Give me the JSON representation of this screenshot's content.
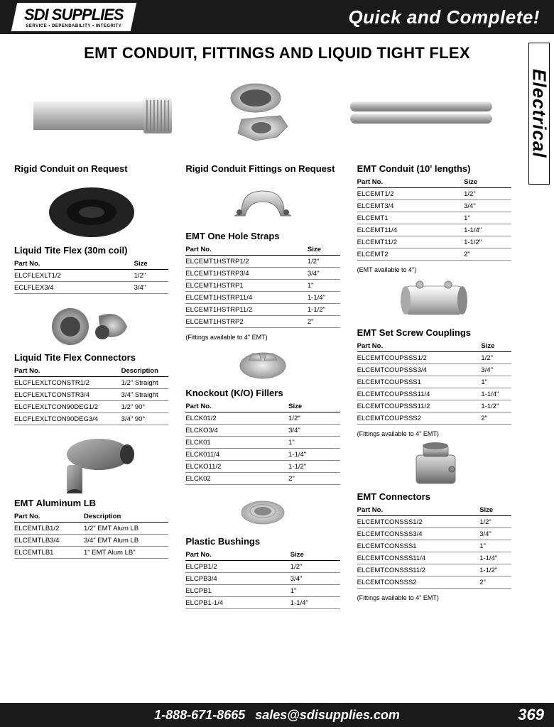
{
  "header": {
    "logo_main": "SDI SUPPLIES",
    "logo_sub": "SERVICE • DEPENDABILITY • INTEGRITY",
    "tagline": "Quick and Complete!"
  },
  "page_title": "EMT CONDUIT, FITTINGS AND LIQUID TIGHT FLEX",
  "side_tab": "Electrical",
  "col1": {
    "s1_title": "Rigid Conduit on Request",
    "s2_title": "Liquid Tite Flex (30m coil)",
    "s2_h1": "Part No.",
    "s2_h2": "Size",
    "s2_rows": [
      [
        "ELCFLEXLT1/2",
        "1/2\""
      ],
      [
        "ECLFLEX3/4",
        "3/4\""
      ]
    ],
    "s3_title": "Liquid Tite Flex Connectors",
    "s3_h1": "Part No.",
    "s3_h2": "Description",
    "s3_rows": [
      [
        "ELCFLEXLTCONSTR1/2",
        "1/2\" Straight"
      ],
      [
        "ELCFLEXLTCONSTR3/4",
        "3/4\" Straight"
      ],
      [
        "ELCFLEXLTCON90DEG1/2",
        "1/2\" 90°"
      ],
      [
        "ELCFLEXLTCON90DEG3/4",
        "3/4\" 90°"
      ]
    ],
    "s4_title": "EMT Aluminum LB",
    "s4_h1": "Part No.",
    "s4_h2": "Description",
    "s4_rows": [
      [
        "ELCEMTLB1/2",
        "1/2\" EMT Alum LB"
      ],
      [
        "ELCEMTLB3/4",
        "3/4\" EMT Alum LB"
      ],
      [
        "ELCEMTLB1",
        "1\" EMT Alum LB\""
      ]
    ]
  },
  "col2": {
    "s1_title": "Rigid Conduit Fittings on Request",
    "s2_title": "EMT One Hole Straps",
    "s2_h1": "Part No.",
    "s2_h2": "Size",
    "s2_rows": [
      [
        "ELCEMT1HSTRP1/2",
        "1/2\""
      ],
      [
        "ELCEMT1HSTRP3/4",
        "3/4\""
      ],
      [
        "ELCEMT1HSTRP1",
        "1\""
      ],
      [
        "ELCEMT1HSTRP11/4",
        "1-1/4\""
      ],
      [
        "ELCEMT1HSTRP11/2",
        "1-1/2\""
      ],
      [
        "ELCEMT1HSTRP2",
        "2\""
      ]
    ],
    "s2_note": "(Fittings available to 4\" EMT)",
    "s3_title": "Knockout (K/O) Fillers",
    "s3_h1": "Part No.",
    "s3_h2": "Size",
    "s3_rows": [
      [
        "ELCK01/2",
        "1/2\""
      ],
      [
        "ELCKO3/4",
        "3/4\""
      ],
      [
        "ELCK01",
        "1\""
      ],
      [
        "ELCK011/4",
        "1-1/4\""
      ],
      [
        "ELCKO11/2",
        "1-1/2\""
      ],
      [
        "ELCK02",
        "2\""
      ]
    ],
    "s4_title": "Plastic Bushings",
    "s4_h1": "Part No.",
    "s4_h2": "Size",
    "s4_rows": [
      [
        "ELCPB1/2",
        "1/2\""
      ],
      [
        "ELCPB3/4",
        "3/4\""
      ],
      [
        "ELCPB1",
        "1\""
      ],
      [
        "ELCPB1-1/4",
        "1-1/4\""
      ]
    ]
  },
  "col3": {
    "s1_title": "EMT Conduit (10' lengths)",
    "s1_h1": "Part No.",
    "s1_h2": "Size",
    "s1_rows": [
      [
        "ELCEMT1/2",
        "1/2\""
      ],
      [
        "ELCEMT3/4",
        "3/4\""
      ],
      [
        "ELCEMT1",
        "1\""
      ],
      [
        "ELCEMT11/4",
        "1-1/4\""
      ],
      [
        "ELCEMT11/2",
        "1-1/2\""
      ],
      [
        "ELCEMT2",
        "2\""
      ]
    ],
    "s1_note": "(EMT available to 4\")",
    "s2_title": "EMT Set Screw Couplings",
    "s2_h1": "Part No.",
    "s2_h2": "Size",
    "s2_rows": [
      [
        "ELCEMTCOUPSSS1/2",
        "1/2\""
      ],
      [
        "ELCEMTCOUPSSS3/4",
        "3/4\""
      ],
      [
        "ELCEMTCOUPSSS1",
        "1\""
      ],
      [
        "ELCEMTCOUPSSS11/4",
        "1-1/4\""
      ],
      [
        "ELCEMTCOUPSSS11/2",
        "1-1/2\""
      ],
      [
        "ELCEMTCOUPSSS2",
        "2\""
      ]
    ],
    "s2_note": "(Fittings available to 4\" EMT)",
    "s3_title": "EMT Connectors",
    "s3_h1": "Part No.",
    "s3_h2": "Size",
    "s3_rows": [
      [
        "ELCEMTCONSSS1/2",
        "1/2\""
      ],
      [
        "ELCEMTCONSSS3/4",
        "3/4\""
      ],
      [
        "ELCEMTCONSSS1",
        "1\""
      ],
      [
        "ELCEMTCONSSS11/4",
        "1-1/4\""
      ],
      [
        "ELCEMTCONSSS11/2",
        "1-1/2\""
      ],
      [
        "ELCEMTCONSSS2",
        "2\""
      ]
    ],
    "s3_note": "(Fittings available to 4\" EMT)"
  },
  "footer": {
    "phone": "1-888-671-8665",
    "email": "sales@sdisupplies.com",
    "page": "369"
  }
}
